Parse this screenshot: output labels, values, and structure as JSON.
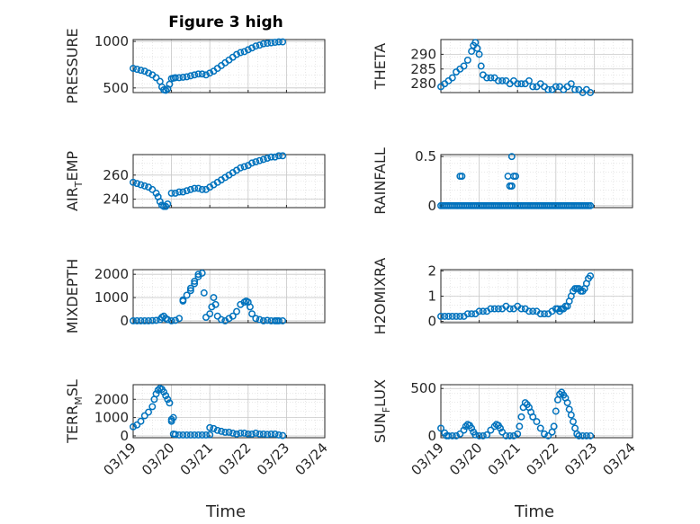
{
  "figure": {
    "title": "Figure 3 high",
    "xlabel": "Time",
    "marker_color": "#0072BD",
    "marker": "circle-open"
  },
  "chart_data": [
    {
      "type": "scatter",
      "ylabel_parts": [
        "PRESSURE"
      ],
      "xlim": [
        0,
        5
      ],
      "ylim": [
        450,
        1020
      ],
      "yticks": [
        500,
        1000
      ],
      "grid": true,
      "x": [
        0,
        0.1,
        0.2,
        0.3,
        0.4,
        0.5,
        0.6,
        0.7,
        0.75,
        0.8,
        0.85,
        0.9,
        0.95,
        1.0,
        1.05,
        1.1,
        1.2,
        1.3,
        1.4,
        1.5,
        1.6,
        1.7,
        1.8,
        1.9,
        2.0,
        2.1,
        2.2,
        2.3,
        2.4,
        2.5,
        2.6,
        2.7,
        2.8,
        2.9,
        3.0,
        3.1,
        3.2,
        3.3,
        3.4,
        3.5,
        3.6,
        3.7,
        3.8,
        3.9
      ],
      "y": [
        710,
        700,
        690,
        680,
        660,
        640,
        610,
        570,
        510,
        480,
        475,
        490,
        540,
        600,
        605,
        610,
        610,
        615,
        620,
        630,
        640,
        650,
        650,
        640,
        660,
        680,
        710,
        740,
        770,
        800,
        830,
        860,
        880,
        890,
        910,
        930,
        950,
        960,
        975,
        980,
        985,
        990,
        995,
        995
      ]
    },
    {
      "type": "scatter",
      "ylabel_parts": [
        "THETA"
      ],
      "xlim": [
        0,
        5
      ],
      "ylim": [
        277,
        295
      ],
      "yticks": [
        280,
        285,
        290
      ],
      "grid": true,
      "x": [
        0,
        0.1,
        0.2,
        0.3,
        0.4,
        0.5,
        0.6,
        0.7,
        0.8,
        0.85,
        0.9,
        0.95,
        1.0,
        1.05,
        1.1,
        1.2,
        1.3,
        1.4,
        1.5,
        1.6,
        1.7,
        1.8,
        1.9,
        2.0,
        2.1,
        2.2,
        2.3,
        2.4,
        2.5,
        2.6,
        2.7,
        2.8,
        2.9,
        3.0,
        3.1,
        3.2,
        3.3,
        3.4,
        3.5,
        3.6,
        3.7,
        3.8,
        3.9
      ],
      "y": [
        279,
        280,
        281,
        282,
        284,
        285,
        286,
        288,
        291,
        293,
        294,
        292,
        290,
        286,
        283,
        282,
        282,
        282,
        281,
        281,
        281,
        280,
        281,
        280,
        280,
        280,
        281,
        279,
        279,
        280,
        279,
        278,
        278,
        279,
        279,
        278,
        279,
        280,
        278,
        278,
        277,
        278,
        277
      ]
    },
    {
      "type": "scatter",
      "ylabel_parts": [
        "AIR",
        "T",
        "EMP"
      ],
      "xlim": [
        0,
        5
      ],
      "ylim": [
        233,
        277
      ],
      "yticks": [
        240,
        260
      ],
      "grid": true,
      "x": [
        0,
        0.1,
        0.2,
        0.3,
        0.4,
        0.5,
        0.6,
        0.65,
        0.7,
        0.75,
        0.8,
        0.85,
        0.9,
        1.0,
        1.1,
        1.2,
        1.3,
        1.4,
        1.5,
        1.6,
        1.7,
        1.8,
        1.9,
        2.0,
        2.1,
        2.2,
        2.3,
        2.4,
        2.5,
        2.6,
        2.7,
        2.8,
        2.9,
        3.0,
        3.1,
        3.2,
        3.3,
        3.4,
        3.5,
        3.6,
        3.7,
        3.8,
        3.9
      ],
      "y": [
        254,
        253,
        252,
        251,
        250,
        248,
        245,
        242,
        238,
        235,
        234,
        234,
        236,
        245,
        245,
        246,
        246,
        247,
        248,
        249,
        249,
        248,
        248,
        250,
        252,
        254,
        256,
        258,
        260,
        262,
        264,
        266,
        267,
        268,
        270,
        271,
        272,
        273,
        274,
        275,
        275,
        276,
        276
      ]
    },
    {
      "type": "scatter",
      "ylabel_parts": [
        "RAINFALL"
      ],
      "xlim": [
        0,
        5
      ],
      "ylim": [
        -0.02,
        0.52
      ],
      "yticks": [
        0,
        0.5
      ],
      "grid": true,
      "x": [
        0,
        0.05,
        0.1,
        0.15,
        0.2,
        0.25,
        0.3,
        0.35,
        0.4,
        0.45,
        0.5,
        0.55,
        0.6,
        0.65,
        0.7,
        0.75,
        0.8,
        0.85,
        0.9,
        0.95,
        1.0,
        1.05,
        1.1,
        1.15,
        1.2,
        1.25,
        1.3,
        1.35,
        1.4,
        1.45,
        1.5,
        1.55,
        1.6,
        1.65,
        1.7,
        1.75,
        1.8,
        1.85,
        1.9,
        1.95,
        2.0,
        2.05,
        2.1,
        2.15,
        2.2,
        2.25,
        2.3,
        2.35,
        2.4,
        2.45,
        2.5,
        2.55,
        2.6,
        2.65,
        2.7,
        2.75,
        2.8,
        2.85,
        2.9,
        2.95,
        3.0,
        3.05,
        3.1,
        3.15,
        3.2,
        3.25,
        3.3,
        3.35,
        3.4,
        3.45,
        3.5,
        3.55,
        3.6,
        3.65,
        3.7,
        3.75,
        3.8,
        3.85,
        3.9,
        0.5,
        0.55,
        1.75,
        1.8,
        1.85,
        1.9,
        1.95,
        1.8,
        1.85,
        1.85
      ],
      "y": [
        0,
        0,
        0,
        0,
        0,
        0,
        0,
        0,
        0,
        0,
        0,
        0,
        0,
        0,
        0,
        0,
        0,
        0,
        0,
        0,
        0,
        0,
        0,
        0,
        0,
        0,
        0,
        0,
        0,
        0,
        0,
        0,
        0,
        0,
        0,
        0,
        0,
        0,
        0,
        0,
        0,
        0,
        0,
        0,
        0,
        0,
        0,
        0,
        0,
        0,
        0,
        0,
        0,
        0,
        0,
        0,
        0,
        0,
        0,
        0,
        0,
        0,
        0,
        0,
        0,
        0,
        0,
        0,
        0,
        0,
        0,
        0,
        0,
        0,
        0,
        0,
        0,
        0,
        0,
        0.3,
        0.3,
        0.3,
        0.2,
        0.5,
        0.3,
        0.3,
        0.2,
        0.2,
        0.2
      ]
    },
    {
      "type": "scatter",
      "ylabel_parts": [
        "MIXDEPTH"
      ],
      "xlim": [
        0,
        5
      ],
      "ylim": [
        -80,
        2200
      ],
      "yticks": [
        0,
        1000,
        2000
      ],
      "grid": true,
      "x": [
        0,
        0.1,
        0.2,
        0.3,
        0.4,
        0.5,
        0.6,
        0.7,
        0.75,
        0.8,
        0.85,
        0.9,
        1.0,
        1.1,
        1.2,
        1.3,
        1.4,
        1.5,
        1.6,
        1.7,
        1.8,
        1.85,
        1.9,
        2.0,
        2.05,
        2.1,
        2.15,
        2.2,
        2.3,
        2.4,
        2.5,
        2.6,
        2.7,
        2.8,
        2.9,
        2.95,
        3.0,
        3.05,
        3.1,
        3.2,
        3.3,
        3.4,
        3.5,
        3.6,
        3.7,
        3.75,
        3.8,
        3.9,
        1.3,
        1.5,
        1.6,
        1.7
      ],
      "y": [
        0,
        0,
        0,
        0,
        0,
        10,
        20,
        50,
        150,
        200,
        100,
        50,
        0,
        20,
        100,
        850,
        1100,
        1400,
        1700,
        2000,
        2050,
        1200,
        150,
        300,
        600,
        1000,
        700,
        200,
        50,
        0,
        100,
        200,
        400,
        700,
        800,
        850,
        800,
        600,
        300,
        100,
        50,
        0,
        20,
        0,
        0,
        0,
        0,
        0,
        900,
        1300,
        1600,
        1900
      ]
    },
    {
      "type": "scatter",
      "ylabel_parts": [
        "H2OMIXRA"
      ],
      "xlim": [
        0,
        5
      ],
      "ylim": [
        -0.05,
        2.05
      ],
      "yticks": [
        0,
        1,
        2
      ],
      "grid": true,
      "x": [
        0,
        0.1,
        0.2,
        0.3,
        0.4,
        0.5,
        0.6,
        0.7,
        0.8,
        0.9,
        1.0,
        1.1,
        1.2,
        1.3,
        1.4,
        1.5,
        1.6,
        1.7,
        1.8,
        1.9,
        2.0,
        2.1,
        2.2,
        2.3,
        2.4,
        2.5,
        2.6,
        2.7,
        2.8,
        2.9,
        3.0,
        3.05,
        3.1,
        3.15,
        3.2,
        3.25,
        3.3,
        3.35,
        3.4,
        3.45,
        3.5,
        3.55,
        3.6,
        3.65,
        3.7,
        3.75,
        3.8,
        3.85,
        3.9
      ],
      "y": [
        0.2,
        0.2,
        0.2,
        0.2,
        0.2,
        0.2,
        0.2,
        0.3,
        0.3,
        0.3,
        0.4,
        0.4,
        0.4,
        0.5,
        0.5,
        0.5,
        0.5,
        0.6,
        0.5,
        0.5,
        0.6,
        0.5,
        0.5,
        0.4,
        0.4,
        0.4,
        0.3,
        0.3,
        0.3,
        0.4,
        0.5,
        0.5,
        0.4,
        0.5,
        0.5,
        0.6,
        0.6,
        0.8,
        1.0,
        1.2,
        1.3,
        1.3,
        1.3,
        1.2,
        1.2,
        1.3,
        1.5,
        1.7,
        1.8
      ]
    },
    {
      "type": "scatter",
      "ylabel_parts": [
        "TERR",
        "M",
        "SL"
      ],
      "xlim": [
        0,
        5
      ],
      "ylim": [
        -100,
        2800
      ],
      "yticks": [
        0,
        1000,
        2000
      ],
      "grid": true,
      "x": [
        0,
        0.1,
        0.2,
        0.3,
        0.4,
        0.5,
        0.55,
        0.6,
        0.65,
        0.7,
        0.75,
        0.8,
        0.85,
        0.9,
        0.95,
        1.0,
        1.05,
        1.1,
        1.2,
        1.3,
        1.4,
        1.5,
        1.6,
        1.7,
        1.8,
        1.9,
        2.0,
        2.1,
        2.2,
        2.3,
        2.4,
        2.5,
        2.6,
        2.7,
        2.8,
        2.9,
        3.0,
        3.1,
        3.2,
        3.3,
        3.4,
        3.5,
        3.6,
        3.7,
        3.8,
        3.9,
        1.0,
        1.05,
        2.0
      ],
      "y": [
        500,
        600,
        800,
        1100,
        1300,
        1600,
        2000,
        2300,
        2500,
        2600,
        2550,
        2400,
        2200,
        2000,
        1800,
        900,
        100,
        80,
        50,
        50,
        50,
        50,
        50,
        50,
        50,
        50,
        60,
        400,
        300,
        250,
        200,
        200,
        150,
        100,
        150,
        150,
        100,
        100,
        150,
        100,
        100,
        80,
        100,
        100,
        50,
        20,
        800,
        1000,
        450
      ]
    },
    {
      "type": "scatter",
      "ylabel_parts": [
        "SUN",
        "F",
        "LUX"
      ],
      "xlim": [
        0,
        5
      ],
      "ylim": [
        -20,
        540
      ],
      "yticks": [
        0,
        500
      ],
      "grid": true,
      "x": [
        0,
        0.1,
        0.15,
        0.2,
        0.3,
        0.4,
        0.5,
        0.6,
        0.65,
        0.7,
        0.75,
        0.8,
        0.85,
        0.9,
        1.0,
        1.1,
        1.2,
        1.3,
        1.4,
        1.45,
        1.5,
        1.55,
        1.6,
        1.7,
        1.8,
        1.9,
        2.0,
        2.05,
        2.1,
        2.15,
        2.2,
        2.25,
        2.3,
        2.35,
        2.4,
        2.5,
        2.6,
        2.7,
        2.8,
        2.9,
        2.95,
        3.0,
        3.05,
        3.1,
        3.15,
        3.2,
        3.25,
        3.3,
        3.35,
        3.4,
        3.45,
        3.5,
        3.55,
        3.6,
        3.7,
        3.8,
        3.9
      ],
      "y": [
        80,
        30,
        0,
        0,
        0,
        0,
        20,
        60,
        100,
        120,
        110,
        80,
        40,
        10,
        0,
        0,
        10,
        60,
        100,
        120,
        110,
        80,
        40,
        0,
        0,
        0,
        20,
        100,
        200,
        300,
        350,
        330,
        300,
        250,
        200,
        150,
        80,
        20,
        0,
        40,
        100,
        260,
        380,
        440,
        460,
        430,
        400,
        350,
        280,
        220,
        150,
        80,
        20,
        0,
        0,
        0,
        0
      ]
    }
  ],
  "x_ticks": [
    "03/19",
    "03/20",
    "03/21",
    "03/22",
    "03/23",
    "03/24"
  ]
}
